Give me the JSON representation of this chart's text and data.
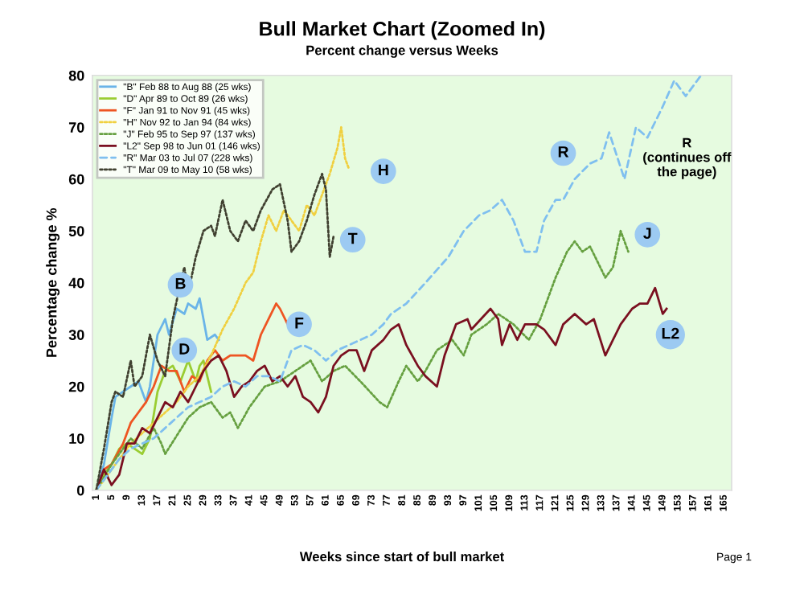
{
  "chart_data": {
    "type": "line",
    "title": "Bull Market Chart (Zoomed In)",
    "subtitle": "Percent change versus Weeks",
    "xlabel": "Weeks since start of bull market",
    "ylabel": "Percentage change %",
    "xlim": [
      0,
      167
    ],
    "xticks": [
      1,
      5,
      9,
      13,
      17,
      21,
      25,
      29,
      33,
      37,
      41,
      45,
      49,
      53,
      57,
      61,
      65,
      69,
      73,
      77,
      81,
      85,
      89,
      93,
      97,
      101,
      105,
      109,
      113,
      117,
      121,
      125,
      129,
      133,
      137,
      141,
      145,
      149,
      153,
      157,
      161,
      165
    ],
    "ylim": [
      0,
      80
    ],
    "yticks": [
      0,
      10,
      20,
      30,
      40,
      50,
      60,
      70,
      80
    ],
    "grid": false,
    "legend": "top left",
    "series": [
      {
        "name": "\"B\" Feb 88 to Aug 88 (25 wks)",
        "color": "#6ab4e8",
        "line_style": "solid",
        "x": [
          1,
          3,
          5,
          6,
          8,
          10,
          12,
          14,
          15,
          17,
          19,
          20,
          22,
          24,
          25,
          27,
          28,
          30,
          32,
          33
        ],
        "values": [
          0,
          5,
          14,
          18,
          19,
          20,
          21,
          17,
          20,
          30,
          33,
          30,
          35,
          34,
          36,
          35,
          37,
          29,
          30,
          29
        ]
      },
      {
        "name": "\"D\" Apr 89 to Oct 89 (26 wks)",
        "color": "#9acd32",
        "line_style": "solid",
        "x": [
          1,
          3,
          5,
          7,
          9,
          11,
          13,
          15,
          17,
          19,
          21,
          23,
          25,
          27,
          28,
          29,
          31
        ],
        "values": [
          0,
          3,
          5,
          8,
          9,
          8,
          7,
          10,
          19,
          23,
          24,
          21,
          25,
          21,
          24,
          25,
          19
        ]
      },
      {
        "name": "\"F\" Jan 91 to Nov 91 (45 wks)",
        "color": "#ee5522",
        "line_style": "solid",
        "x": [
          1,
          3,
          5,
          8,
          10,
          12,
          14,
          16,
          18,
          20,
          22,
          24,
          26,
          28,
          30,
          32,
          34,
          36,
          38,
          40,
          42,
          44,
          46,
          48,
          49,
          51
        ],
        "values": [
          0,
          4,
          5,
          9,
          13,
          15,
          17,
          20,
          24,
          23,
          23,
          19,
          22,
          21,
          25,
          27,
          25,
          26,
          26,
          26,
          25,
          30,
          33,
          36,
          35,
          32
        ]
      },
      {
        "name": "\"H\" Nov 92 to Jan 94 (84 wks)",
        "color": "#f0d040",
        "line_style": "dotted",
        "x": [
          1,
          4,
          7,
          10,
          13,
          16,
          19,
          22,
          25,
          28,
          31,
          34,
          37,
          40,
          42,
          44,
          46,
          48,
          50,
          52,
          54,
          56,
          58,
          60,
          62,
          64,
          65,
          66,
          67
        ],
        "values": [
          0,
          3,
          6,
          9,
          11,
          13,
          15,
          17,
          20,
          22,
          26,
          31,
          35,
          40,
          42,
          48,
          53,
          50,
          54,
          52,
          50,
          55,
          53,
          57,
          61,
          66,
          70,
          64,
          62
        ]
      },
      {
        "name": "\"J\" Feb 95 to Sep 97 (137 wks)",
        "color": "#66a040",
        "line_style": "dotted",
        "x": [
          1,
          5,
          10,
          13,
          16,
          18,
          19,
          25,
          28,
          31,
          34,
          36,
          38,
          41,
          45,
          49,
          53,
          57,
          60,
          63,
          66,
          70,
          75,
          77,
          80,
          82,
          85,
          87,
          90,
          94,
          97,
          99,
          103,
          106,
          110,
          114,
          117,
          121,
          124,
          126,
          128,
          130,
          134,
          136,
          138,
          140
        ],
        "values": [
          0,
          5,
          10,
          8,
          12,
          9,
          7,
          14,
          16,
          17,
          14,
          15,
          12,
          16,
          20,
          21,
          23,
          25,
          21,
          23,
          24,
          21,
          17,
          16,
          21,
          24,
          21,
          23,
          27,
          29,
          26,
          30,
          32,
          34,
          32,
          29,
          33,
          41,
          46,
          48,
          46,
          47,
          41,
          43,
          50,
          46
        ]
      },
      {
        "name": "\"L2\" Sep 98 to Jun 01 (146 wks)",
        "color": "#7a1020",
        "line_style": "solid",
        "x": [
          1,
          3,
          5,
          7,
          9,
          11,
          13,
          15,
          17,
          19,
          21,
          23,
          25,
          27,
          29,
          31,
          33,
          35,
          37,
          39,
          41,
          43,
          45,
          47,
          49,
          51,
          53,
          55,
          57,
          59,
          61,
          63,
          65,
          67,
          69,
          71,
          73,
          76,
          78,
          80,
          82,
          85,
          87,
          90,
          92,
          95,
          98,
          99,
          104,
          106,
          107,
          109,
          111,
          113,
          116,
          118,
          121,
          123,
          126,
          129,
          131,
          134,
          136,
          138,
          141,
          143,
          145,
          147,
          149,
          150
        ],
        "values": [
          0,
          4,
          1,
          3,
          9,
          9,
          12,
          11,
          14,
          17,
          16,
          19,
          17,
          20,
          23,
          25,
          26,
          23,
          18,
          20,
          21,
          23,
          24,
          21,
          22,
          20,
          22,
          18,
          17,
          15,
          18,
          24,
          26,
          27,
          27,
          23,
          27,
          29,
          31,
          32,
          28,
          24,
          22,
          20,
          26,
          32,
          33,
          31,
          35,
          33,
          28,
          32,
          29,
          32,
          32,
          31,
          28,
          32,
          34,
          32,
          33,
          26,
          29,
          32,
          35,
          36,
          36,
          39,
          34,
          35
        ]
      },
      {
        "name": "\"R\" Mar 03 to Jul 07 (228 wks)",
        "color": "#7fbfef",
        "line_style": "dashed",
        "x": [
          1,
          4,
          7,
          10,
          13,
          16,
          19,
          22,
          25,
          28,
          31,
          34,
          37,
          40,
          43,
          46,
          49,
          52,
          55,
          58,
          61,
          64,
          67,
          70,
          73,
          76,
          78,
          82,
          87,
          93,
          97,
          101,
          104,
          107,
          110,
          113,
          116,
          118,
          121,
          123,
          126,
          130,
          133,
          135,
          139,
          142,
          145,
          149,
          152,
          155,
          158,
          159
        ],
        "values": [
          0,
          3,
          6,
          8,
          9,
          10,
          12,
          14,
          16,
          17,
          18,
          20,
          21,
          20,
          22,
          22,
          21,
          27,
          28,
          27,
          25,
          27,
          28,
          29,
          30,
          32,
          34,
          36,
          40,
          45,
          50,
          53,
          54,
          56,
          52,
          46,
          46,
          52,
          56,
          56,
          60,
          63,
          64,
          69,
          60,
          70,
          68,
          74,
          79,
          76,
          79,
          80
        ]
      },
      {
        "name": "\"T\" Mar 09 to May 10 (58 wks)",
        "color": "#404030",
        "line_style": "dotted",
        "x": [
          1,
          3,
          5,
          6,
          8,
          10,
          11,
          13,
          15,
          17,
          19,
          21,
          23,
          24,
          25,
          27,
          29,
          31,
          32,
          34,
          36,
          38,
          40,
          42,
          44,
          47,
          49,
          51,
          52,
          54,
          56,
          58,
          60,
          61,
          62,
          63
        ],
        "values": [
          0,
          8,
          17,
          19,
          18,
          25,
          20,
          22,
          30,
          25,
          22,
          33,
          40,
          43,
          38,
          45,
          50,
          51,
          49,
          56,
          50,
          48,
          52,
          50,
          54,
          58,
          59,
          52,
          46,
          48,
          52,
          57,
          61,
          58,
          45,
          49
        ]
      }
    ],
    "annotations": [
      {
        "text": "B",
        "x": 23,
        "y": 39.6
      },
      {
        "text": "D",
        "x": 24,
        "y": 27
      },
      {
        "text": "F",
        "x": 54,
        "y": 32
      },
      {
        "text": "H",
        "x": 76,
        "y": 61.5
      },
      {
        "text": "T",
        "x": 68,
        "y": 48.3
      },
      {
        "text": "R",
        "x": 123,
        "y": 65
      },
      {
        "text": "J",
        "x": 145,
        "y": 49.3
      },
      {
        "text": "L2",
        "x": 151,
        "y": 30
      },
      "R\n(continues off\nthe page)",
      "Page 1"
    ]
  }
}
